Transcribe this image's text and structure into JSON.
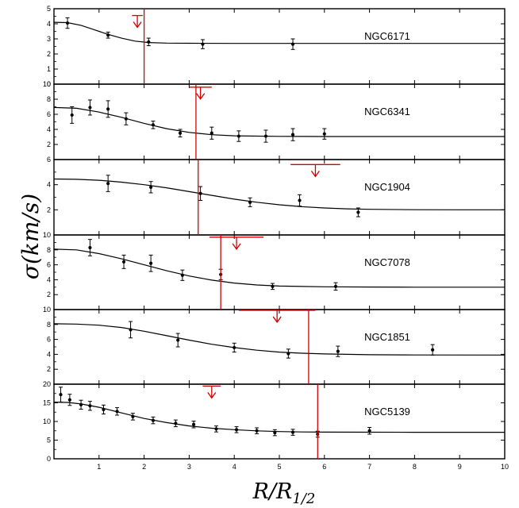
{
  "chart_data": {
    "type": "line",
    "xlabel": "R/R1/2",
    "ylabel": "σ(km/s)",
    "xlim": [
      0,
      10
    ],
    "x_ticks": [
      "1",
      "2",
      "3",
      "4",
      "5",
      "6",
      "7",
      "8",
      "9",
      "10"
    ],
    "series_color": "#000000",
    "marker_color": "#d40000",
    "panels": [
      {
        "name": "NGC6171",
        "ylim": [
          0,
          5
        ],
        "y_ticks": [
          0,
          1,
          2,
          3,
          4,
          5
        ],
        "points": [
          {
            "x": 0.3,
            "y": 4.05,
            "err": 0.35
          },
          {
            "x": 1.2,
            "y": 3.25,
            "err": 0.2
          },
          {
            "x": 2.1,
            "y": 2.8,
            "err": 0.25
          },
          {
            "x": 3.3,
            "y": 2.65,
            "err": 0.3
          },
          {
            "x": 5.3,
            "y": 2.65,
            "err": 0.35
          }
        ],
        "model": [
          [
            0,
            4.1
          ],
          [
            0.3,
            4.08
          ],
          [
            0.6,
            3.9
          ],
          [
            0.9,
            3.6
          ],
          [
            1.2,
            3.3
          ],
          [
            1.5,
            3.05
          ],
          [
            1.8,
            2.85
          ],
          [
            2.1,
            2.76
          ],
          [
            2.5,
            2.72
          ],
          [
            3,
            2.71
          ],
          [
            4,
            2.7
          ],
          [
            6,
            2.7
          ],
          [
            8,
            2.7
          ],
          [
            10,
            2.7
          ]
        ],
        "marker_x": 2.0,
        "upper_limit": {
          "x": 1.85,
          "y": 4.55,
          "half_width": 0.12
        }
      },
      {
        "name": "NGC6341",
        "ylim": [
          0,
          10
        ],
        "y_ticks": [
          2,
          4,
          6,
          8,
          10
        ],
        "points": [
          {
            "x": 0.4,
            "y": 5.9,
            "err": 1.1
          },
          {
            "x": 0.8,
            "y": 6.9,
            "err": 1.0
          },
          {
            "x": 1.2,
            "y": 6.7,
            "err": 1.1
          },
          {
            "x": 1.6,
            "y": 5.4,
            "err": 0.8
          },
          {
            "x": 2.2,
            "y": 4.6,
            "err": 0.5
          },
          {
            "x": 2.8,
            "y": 3.5,
            "err": 0.5
          },
          {
            "x": 3.5,
            "y": 3.5,
            "err": 0.8
          },
          {
            "x": 4.1,
            "y": 3.1,
            "err": 0.7
          },
          {
            "x": 4.7,
            "y": 3.1,
            "err": 0.8
          },
          {
            "x": 5.3,
            "y": 3.3,
            "err": 0.8
          },
          {
            "x": 6.0,
            "y": 3.4,
            "err": 0.7
          }
        ],
        "model": [
          [
            0,
            6.9
          ],
          [
            0.5,
            6.8
          ],
          [
            1,
            6.3
          ],
          [
            1.5,
            5.6
          ],
          [
            2,
            4.8
          ],
          [
            2.5,
            4.1
          ],
          [
            3,
            3.6
          ],
          [
            3.5,
            3.3
          ],
          [
            4,
            3.15
          ],
          [
            5,
            3.07
          ],
          [
            6,
            3.05
          ],
          [
            8,
            3.05
          ],
          [
            10,
            3.05
          ]
        ],
        "marker_x": 3.15,
        "upper_limit": {
          "x": 3.25,
          "y": 9.6,
          "half_width": 0.25
        }
      },
      {
        "name": "NGC1904",
        "ylim": [
          0,
          6
        ],
        "y_ticks": [
          2,
          4,
          6
        ],
        "points": [
          {
            "x": 1.2,
            "y": 4.1,
            "err": 0.65
          },
          {
            "x": 2.15,
            "y": 3.8,
            "err": 0.45
          },
          {
            "x": 3.25,
            "y": 3.3,
            "err": 0.55
          },
          {
            "x": 4.35,
            "y": 2.6,
            "err": 0.35
          },
          {
            "x": 5.45,
            "y": 2.75,
            "err": 0.45
          },
          {
            "x": 6.75,
            "y": 1.8,
            "err": 0.35
          }
        ],
        "model": [
          [
            0,
            4.45
          ],
          [
            0.5,
            4.43
          ],
          [
            1,
            4.35
          ],
          [
            1.5,
            4.2
          ],
          [
            2,
            4.0
          ],
          [
            2.5,
            3.75
          ],
          [
            3,
            3.45
          ],
          [
            3.5,
            3.15
          ],
          [
            4,
            2.85
          ],
          [
            4.5,
            2.6
          ],
          [
            5,
            2.4
          ],
          [
            5.5,
            2.25
          ],
          [
            6,
            2.15
          ],
          [
            6.5,
            2.08
          ],
          [
            7,
            2.04
          ],
          [
            8,
            2.01
          ],
          [
            9,
            2.0
          ],
          [
            10,
            2.0
          ]
        ],
        "marker_x": 3.2,
        "upper_limit": {
          "x": 5.8,
          "y": 5.6,
          "half_width": 0.55
        }
      },
      {
        "name": "NGC7078",
        "ylim": [
          0,
          10
        ],
        "y_ticks": [
          2,
          4,
          6,
          8,
          10
        ],
        "points": [
          {
            "x": 0.8,
            "y": 8.3,
            "err": 1.1
          },
          {
            "x": 1.55,
            "y": 6.4,
            "err": 0.9
          },
          {
            "x": 2.15,
            "y": 6.2,
            "err": 1.1
          },
          {
            "x": 2.85,
            "y": 4.6,
            "err": 0.7
          },
          {
            "x": 3.7,
            "y": 4.7,
            "err": 0.7
          },
          {
            "x": 4.85,
            "y": 3.1,
            "err": 0.4
          },
          {
            "x": 6.25,
            "y": 3.1,
            "err": 0.5
          }
        ],
        "model": [
          [
            0,
            8.1
          ],
          [
            0.5,
            8.0
          ],
          [
            1,
            7.5
          ],
          [
            1.5,
            6.8
          ],
          [
            2,
            6.0
          ],
          [
            2.5,
            5.2
          ],
          [
            3,
            4.5
          ],
          [
            3.5,
            3.95
          ],
          [
            4,
            3.55
          ],
          [
            4.5,
            3.3
          ],
          [
            5,
            3.15
          ],
          [
            6,
            3.05
          ],
          [
            7,
            3.02
          ],
          [
            8,
            3.0
          ],
          [
            10,
            3.0
          ]
        ],
        "marker_x": 3.7,
        "upper_limit": {
          "x": 4.05,
          "y": 9.7,
          "half_width": 0.6
        }
      },
      {
        "name": "NGC1851",
        "ylim": [
          0,
          10
        ],
        "y_ticks": [
          2,
          4,
          6,
          8,
          10
        ],
        "points": [
          {
            "x": 1.7,
            "y": 7.3,
            "err": 1.1
          },
          {
            "x": 2.75,
            "y": 5.9,
            "err": 0.9
          },
          {
            "x": 4.0,
            "y": 4.9,
            "err": 0.6
          },
          {
            "x": 5.2,
            "y": 4.1,
            "err": 0.6
          },
          {
            "x": 6.3,
            "y": 4.4,
            "err": 0.7
          },
          {
            "x": 8.4,
            "y": 4.6,
            "err": 0.7
          }
        ],
        "model": [
          [
            0,
            8.1
          ],
          [
            0.5,
            8.05
          ],
          [
            1,
            7.9
          ],
          [
            1.5,
            7.6
          ],
          [
            2,
            7.1
          ],
          [
            2.5,
            6.5
          ],
          [
            3,
            5.9
          ],
          [
            3.5,
            5.35
          ],
          [
            4,
            4.9
          ],
          [
            4.5,
            4.55
          ],
          [
            5,
            4.3
          ],
          [
            5.5,
            4.15
          ],
          [
            6,
            4.05
          ],
          [
            7,
            3.95
          ],
          [
            8,
            3.92
          ],
          [
            10,
            3.9
          ]
        ],
        "marker_x": 5.65,
        "upper_limit": {
          "x": 4.95,
          "y": 9.9,
          "half_width": 0.85
        }
      },
      {
        "name": "NGC5139",
        "ylim": [
          0,
          20
        ],
        "y_ticks": [
          0,
          5,
          10,
          15,
          20
        ],
        "points": [
          {
            "x": 0.15,
            "y": 17.2,
            "err": 2.0
          },
          {
            "x": 0.35,
            "y": 15.8,
            "err": 1.5
          },
          {
            "x": 0.6,
            "y": 14.5,
            "err": 1.2
          },
          {
            "x": 0.8,
            "y": 14.2,
            "err": 1.2
          },
          {
            "x": 1.1,
            "y": 13.2,
            "err": 1.2
          },
          {
            "x": 1.4,
            "y": 12.7,
            "err": 1.0
          },
          {
            "x": 1.75,
            "y": 11.3,
            "err": 0.9
          },
          {
            "x": 2.2,
            "y": 10.3,
            "err": 0.9
          },
          {
            "x": 2.7,
            "y": 9.5,
            "err": 0.9
          },
          {
            "x": 3.1,
            "y": 9.2,
            "err": 0.9
          },
          {
            "x": 3.6,
            "y": 8.0,
            "err": 0.8
          },
          {
            "x": 4.05,
            "y": 7.8,
            "err": 0.8
          },
          {
            "x": 4.5,
            "y": 7.5,
            "err": 0.8
          },
          {
            "x": 4.9,
            "y": 7.0,
            "err": 0.8
          },
          {
            "x": 5.3,
            "y": 7.1,
            "err": 0.8
          },
          {
            "x": 5.85,
            "y": 6.6,
            "err": 0.8
          },
          {
            "x": 7.0,
            "y": 7.5,
            "err": 0.9
          }
        ],
        "model": [
          [
            0,
            15.2
          ],
          [
            0.3,
            15.1
          ],
          [
            0.6,
            14.7
          ],
          [
            1,
            13.8
          ],
          [
            1.5,
            12.3
          ],
          [
            2,
            10.8
          ],
          [
            2.5,
            9.7
          ],
          [
            3,
            8.8
          ],
          [
            3.5,
            8.2
          ],
          [
            4,
            7.8
          ],
          [
            4.5,
            7.5
          ],
          [
            5,
            7.3
          ],
          [
            5.5,
            7.2
          ],
          [
            6,
            7.15
          ],
          [
            7,
            7.12
          ],
          [
            8,
            7.1
          ],
          [
            10,
            7.1
          ]
        ],
        "marker_x": 5.85,
        "upper_limit": {
          "x": 3.5,
          "y": 19.5,
          "half_width": 0.2
        }
      }
    ]
  }
}
